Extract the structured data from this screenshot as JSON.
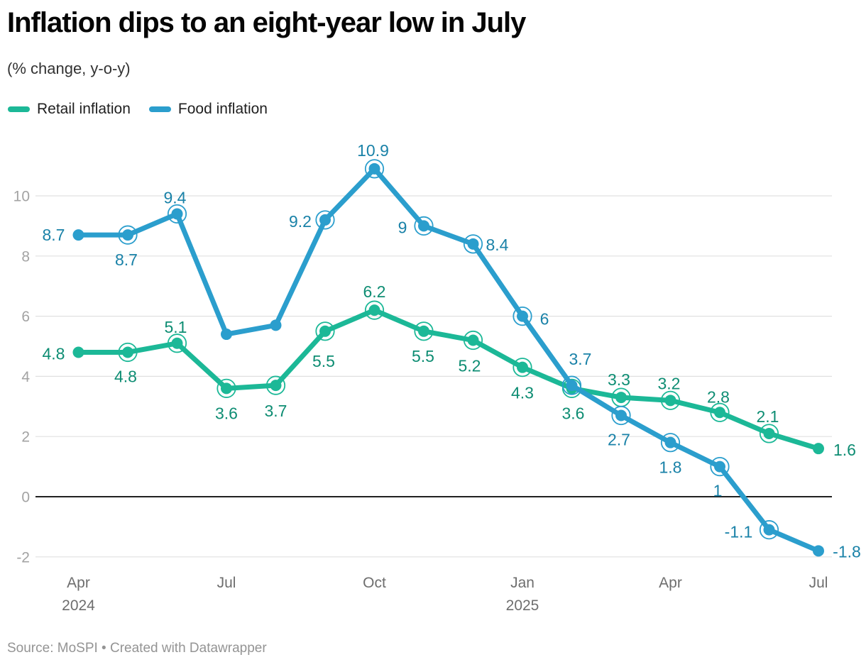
{
  "header": {
    "title": "Inflation dips to an eight-year low in July",
    "subtitle": "(% change, y-o-y)"
  },
  "legend": [
    {
      "label": "Retail inflation",
      "color": "#1cb897"
    },
    {
      "label": "Food inflation",
      "color": "#2b9ecd"
    }
  ],
  "footer": {
    "source_line": "Source: MoSPI • Created with Datawrapper"
  },
  "chart_data": {
    "type": "line",
    "title": "Inflation dips to an eight-year low in July",
    "subtitle": "(% change, y-o-y)",
    "x": [
      "Apr 2024",
      "May 2024",
      "Jun 2024",
      "Jul 2024",
      "Aug 2024",
      "Sep 2024",
      "Oct 2024",
      "Nov 2024",
      "Dec 2024",
      "Jan 2025",
      "Feb 2025",
      "Mar 2025",
      "Apr 2025",
      "May 2025",
      "Jun 2025",
      "Jul 2025"
    ],
    "x_axis_ticks": [
      {
        "index": 0,
        "label": "Apr",
        "year": "2024"
      },
      {
        "index": 3,
        "label": "Jul"
      },
      {
        "index": 6,
        "label": "Oct"
      },
      {
        "index": 9,
        "label": "Jan",
        "year": "2025"
      },
      {
        "index": 12,
        "label": "Apr"
      },
      {
        "index": 15,
        "label": "Jul"
      }
    ],
    "y_ticks": [
      10,
      8,
      6,
      4,
      2,
      0,
      -2
    ],
    "ylim": [
      -2.4,
      11.6
    ],
    "grid": true,
    "legend_position": "top-left",
    "series": [
      {
        "name": "Retail inflation",
        "color": "#1cb897",
        "label_color": "#0e8d73",
        "values": [
          4.8,
          4.8,
          5.1,
          3.6,
          3.7,
          5.5,
          6.2,
          5.5,
          5.2,
          4.3,
          3.6,
          3.3,
          3.2,
          2.8,
          2.1,
          1.6
        ],
        "labels": [
          "4.8",
          "4.8",
          "5.1",
          "3.6",
          "3.7",
          "5.5",
          "6.2",
          "5.5",
          "5.2",
          "4.3",
          "3.6",
          "3.3",
          "3.2",
          "2.8",
          "2.1",
          "1.6"
        ]
      },
      {
        "name": "Food inflation",
        "color": "#2b9ecd",
        "label_color": "#1a82a8",
        "values": [
          8.7,
          8.7,
          9.4,
          5.4,
          5.7,
          9.2,
          10.9,
          9,
          8.4,
          6,
          3.7,
          2.7,
          1.8,
          1,
          -1.1,
          -1.8
        ],
        "labels": [
          "8.7",
          "8.7",
          "9.4",
          null,
          null,
          "9.2",
          "10.9",
          "9",
          "8.4",
          "6",
          "3.7",
          "2.7",
          "1.8",
          "1",
          "-1.1",
          "-1.8"
        ]
      }
    ]
  }
}
